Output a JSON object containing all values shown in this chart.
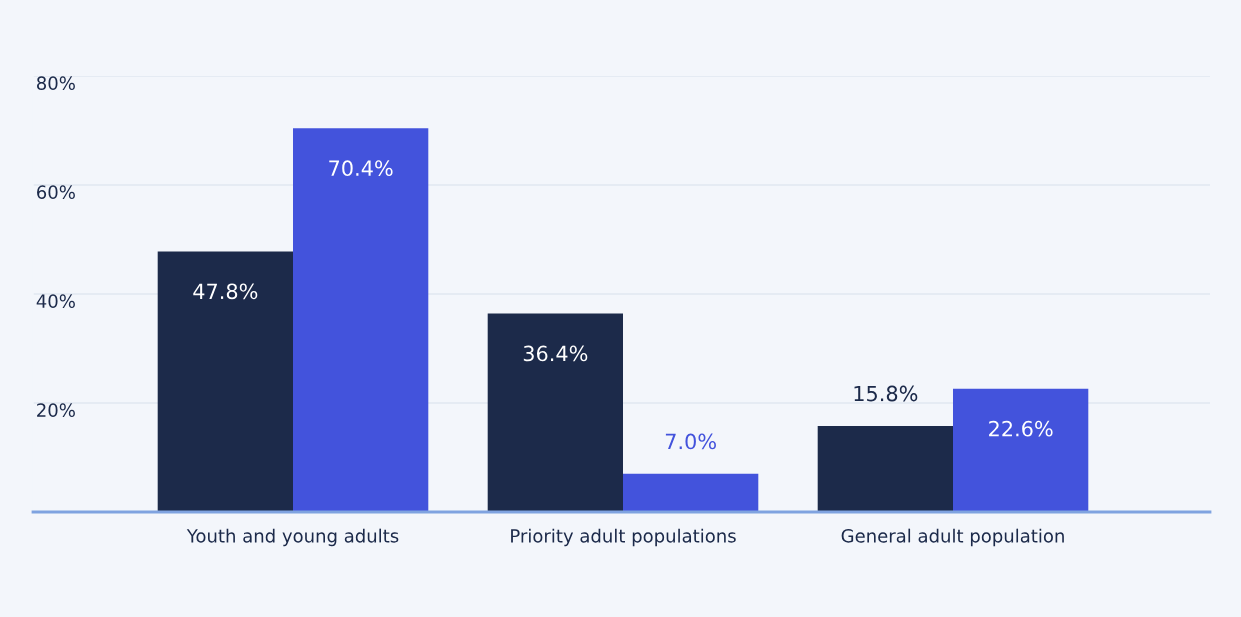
{
  "chart_data": {
    "type": "bar",
    "categories": [
      "Youth and young adults",
      "Priority adult populations",
      "General adult population"
    ],
    "series": [
      {
        "color": "#1c2a4a",
        "values": [
          47.8,
          36.4,
          15.8
        ],
        "value_labels": [
          "47.8%",
          "36.4%",
          "15.8%"
        ]
      },
      {
        "color": "#4353dc",
        "values": [
          70.4,
          7.0,
          22.6
        ],
        "value_labels": [
          "70.4%",
          "7.0%",
          "22.6%"
        ]
      }
    ],
    "ylim": [
      0,
      80
    ],
    "yticks": [
      {
        "value": 20,
        "label": "20%"
      },
      {
        "value": 40,
        "label": "40%"
      },
      {
        "value": 60,
        "label": "60%"
      },
      {
        "value": 80,
        "label": "80%"
      }
    ],
    "grid": "y",
    "legend": false
  }
}
